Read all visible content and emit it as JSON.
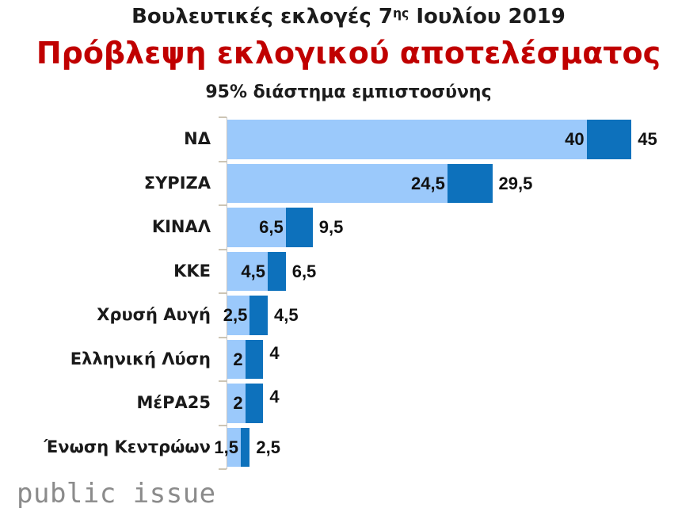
{
  "title": {
    "pre": "Βουλευτικές εκλογές 7",
    "sup": "ης",
    "post": " Ιουλίου 2019"
  },
  "subtitle": "Πρόβλεψη εκλογικού αποτελέσματος",
  "note": "95% διάστημα εμπιστοσύνης",
  "logo": "public issue",
  "colors": {
    "bar_light": "#9bc9fb",
    "bar_dark": "#0d71bc",
    "subtitle_red": "#c00000",
    "logo_gray": "#8b8b8b"
  },
  "chart_data": {
    "type": "bar",
    "orientation": "horizontal",
    "title": "Βουλευτικές εκλογές 7ης Ιουλίου 2019",
    "subtitle": "Πρόβλεψη εκλογικού αποτελέσματος",
    "note": "95% διάστημα εμπιστοσύνης",
    "categories": [
      "ΝΔ",
      "ΣΥΡΙΖΑ",
      "ΚΙΝΑΛ",
      "ΚΚΕ",
      "Χρυσή Αυγή",
      "Ελληνική Λύση",
      "ΜέΡΑ25",
      "Ένωση Κεντρώων"
    ],
    "series": [
      {
        "name": "lower_bound",
        "values": [
          40,
          24.5,
          6.5,
          4.5,
          2.5,
          2,
          2,
          1.5
        ]
      },
      {
        "name": "upper_bound",
        "values": [
          45,
          29.5,
          9.5,
          6.5,
          4.5,
          4,
          4,
          2.5
        ]
      }
    ],
    "value_label_format": "comma_decimal",
    "xlim": [
      0,
      52.3
    ],
    "grid": false,
    "legend": false
  }
}
